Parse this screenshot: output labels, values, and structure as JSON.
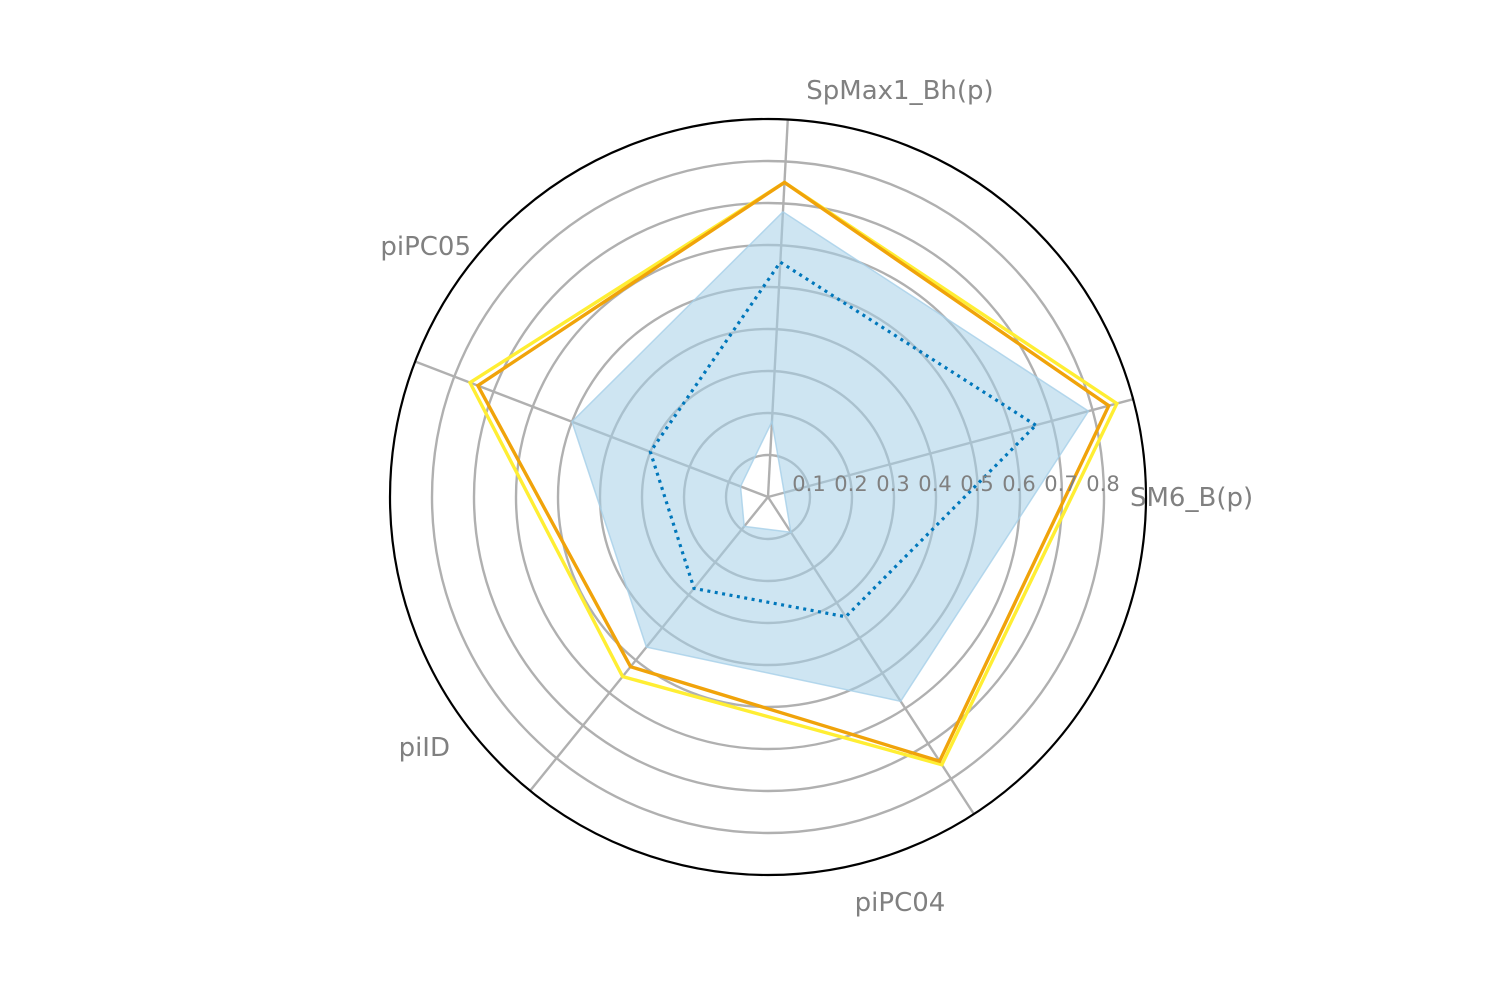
{
  "chart_data": {
    "type": "radar",
    "title": "",
    "axes": [
      "SM6_B(p)",
      "SpMax1_Bh(p)",
      "piPC05",
      "piID",
      "piPC04"
    ],
    "radial_ticks": [
      "0.1",
      "0.2",
      "0.3",
      "0.4",
      "0.5",
      "0.6",
      "0.7",
      "0.8"
    ],
    "rlim": [
      0,
      0.9
    ],
    "grid": true,
    "series": [
      {
        "kind": "band",
        "color": "#a6cfe8",
        "lower": [
          0.04,
          0.18,
          0.07,
          0.09,
          0.1
        ],
        "upper": [
          0.79,
          0.68,
          0.5,
          0.46,
          0.58
        ]
      },
      {
        "kind": "line",
        "style": "dotted",
        "color": "#0077bb",
        "values": [
          0.66,
          0.56,
          0.3,
          0.28,
          0.34
        ]
      },
      {
        "kind": "line",
        "style": "solid",
        "color": "#ffee33",
        "values": [
          0.86,
          0.75,
          0.76,
          0.55,
          0.76
        ]
      },
      {
        "kind": "line",
        "style": "solid",
        "color": "#f0a30a",
        "values": [
          0.84,
          0.75,
          0.74,
          0.52,
          0.75
        ]
      }
    ]
  }
}
